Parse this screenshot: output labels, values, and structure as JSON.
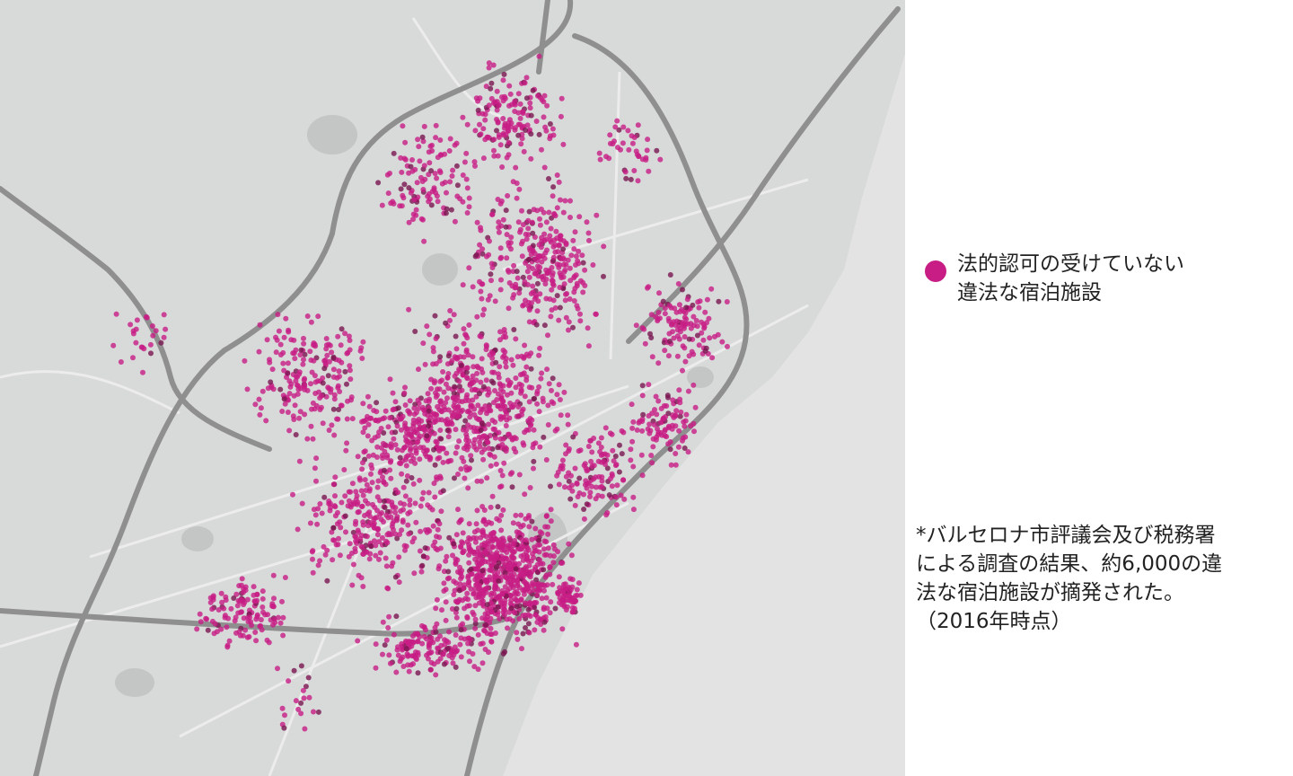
{
  "colors": {
    "dot": "#c71d84",
    "land": "#d8d9d9",
    "sea": "#e3e3e3",
    "road": "#8f8f8f",
    "street": "#ececec"
  },
  "legend": {
    "marker_icon": "circle-marker",
    "line1": "法的認可の受けていない",
    "line2": "違法な宿泊施設"
  },
  "note": {
    "line1": "*バルセロナ市評議会及び税務署",
    "line2": "による調査の結果、約6,000の違",
    "line3": "法な宿泊施設が摘発された。",
    "line4": "（2016年時点）"
  }
}
